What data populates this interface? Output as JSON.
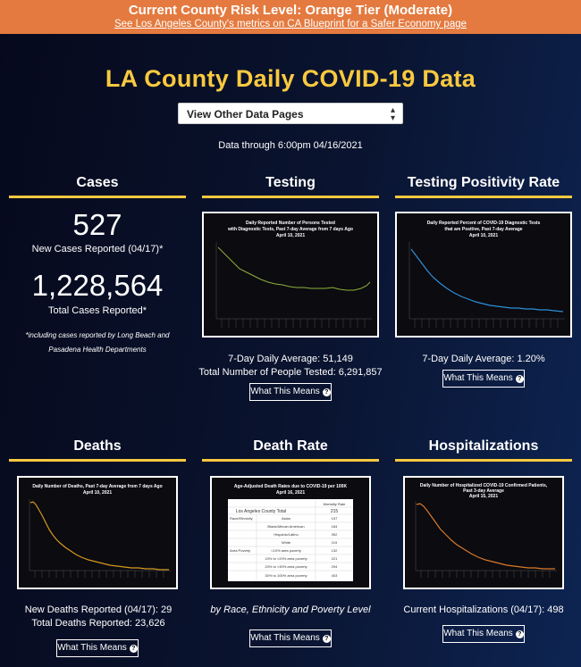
{
  "banner": {
    "title": "Current County Risk Level: Orange Tier (Moderate)",
    "link": "See Los Angeles County's metrics on CA Blueprint for a Safer Economy page"
  },
  "header": {
    "title": "LA County Daily COVID-19 Data",
    "select_label": "View Other Data Pages",
    "data_through": "Data through 6:00pm 04/16/2021"
  },
  "cases": {
    "heading": "Cases",
    "new_cases": "527",
    "new_cases_label": "New Cases Reported (04/17)*",
    "total_cases": "1,228,564",
    "total_cases_label": "Total Cases Reported*",
    "footnote": "*including cases reported by Long Beach and Pasadena Health Departments"
  },
  "testing": {
    "heading": "Testing",
    "chart_title_1": "Daily Reported Number of Persons Tested",
    "chart_title_2": "with Diagnostic Tests, Past 7-day Average from 7 days Ago",
    "chart_title_3": "April 10, 2021",
    "avg": "7-Day Daily Average: 51,149",
    "total": "Total Number of People Tested: 6,291,857",
    "button": "What This Means"
  },
  "positivity": {
    "heading": "Testing Positivity Rate",
    "chart_title_1": "Daily Reported Percent of COVID-19 Diagnostic Tests",
    "chart_title_2": "that are Positive, Past 7-day Average",
    "chart_title_3": "April 10, 2021",
    "avg": "7-Day Daily Average: 1.20%",
    "button": "What This Means"
  },
  "deaths": {
    "heading": "Deaths",
    "chart_title_1": "Daily Number of Deaths, Past 7-day Average from 7 days Ago",
    "chart_title_2": "April 10, 2021",
    "new": "New Deaths Reported (04/17): 29",
    "total": "Total Deaths Reported: 23,626",
    "button": "What This Means"
  },
  "death_rate": {
    "heading": "Death Rate",
    "table_title_1": "Age-Adjusted Death Rates due to COVID-19 per 100K",
    "table_title_2": "April 16, 2021",
    "col_header": "Mortality Rate",
    "total_label": "Los Angeles County Total",
    "total_value": "215",
    "rows": [
      {
        "group": "Race/Ethnicity",
        "label": "Asian",
        "value": "157"
      },
      {
        "group": "",
        "label": "Black/African American",
        "value": "184"
      },
      {
        "group": "",
        "label": "Hispanic/Latino",
        "value": "392"
      },
      {
        "group": "",
        "label": "White",
        "value": "119"
      },
      {
        "group": "Area Poverty",
        "label": "<10% area poverty",
        "value": "132"
      },
      {
        "group": "",
        "label": "10% to <20% area poverty",
        "value": "221"
      },
      {
        "group": "",
        "label": "20% to <30% area poverty",
        "value": "294"
      },
      {
        "group": "",
        "label": "30% to 100% area poverty",
        "value": "403"
      }
    ],
    "caption": "by Race, Ethnicity and Poverty Level",
    "button": "What This Means"
  },
  "hosp": {
    "heading": "Hospitalizations",
    "chart_title_1": "Daily Number of Hospitalized COVID-19 Confirmed Patients,",
    "chart_title_2": "Past 3-day Average",
    "chart_title_3": "April 15, 2021",
    "current": "Current Hospitalizations (04/17): 498",
    "button": "What This Means"
  },
  "colors": {
    "accent": "#f9c93f",
    "banner": "#e47a3f",
    "testing_line": "#8fb03a",
    "positivity_line": "#2e8fd8",
    "deaths_line": "#d79a1e",
    "hosp_line": "#d97a2a"
  },
  "icons": {
    "select_caret": "updown-caret-icon",
    "help": "question-circle-icon"
  }
}
